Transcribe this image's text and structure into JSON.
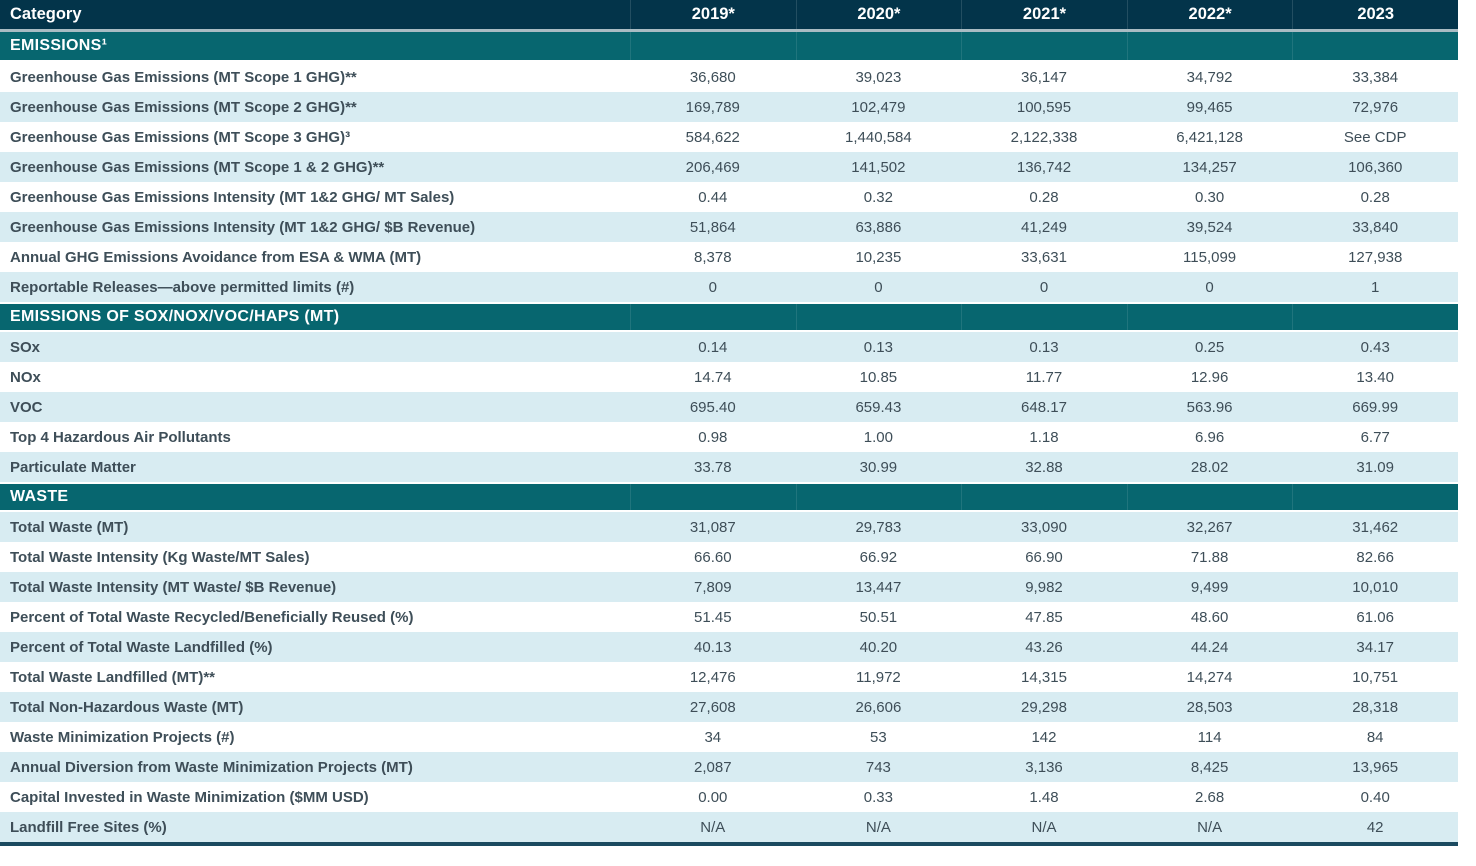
{
  "colors": {
    "header_bg": "#03344a",
    "section_bg": "#07666f",
    "shaded_row_bg": "#d8ecf2",
    "body_text": "#3e4e58",
    "header_text": "#ffffff",
    "header_separator": "#a9bcc3",
    "bottom_rule": "#1b4a60"
  },
  "chart_data": {
    "type": "table",
    "category_header": "Category",
    "columns": [
      "2019*",
      "2020*",
      "2021*",
      "2022*",
      "2023"
    ],
    "sections": [
      {
        "title": "EMISSIONS¹",
        "rows": [
          {
            "label": "Greenhouse Gas Emissions (MT Scope 1 GHG)**",
            "values": [
              "36,680",
              "39,023",
              "36,147",
              "34,792",
              "33,384"
            ]
          },
          {
            "label": "Greenhouse Gas Emissions (MT Scope 2 GHG)**",
            "values": [
              "169,789",
              "102,479",
              "100,595",
              "99,465",
              "72,976"
            ]
          },
          {
            "label": "Greenhouse Gas Emissions (MT Scope 3 GHG)³",
            "values": [
              "584,622",
              "1,440,584",
              "2,122,338",
              "6,421,128",
              "See CDP"
            ]
          },
          {
            "label": "Greenhouse Gas Emissions (MT Scope 1 & 2 GHG)**",
            "values": [
              "206,469",
              "141,502",
              "136,742",
              "134,257",
              "106,360"
            ]
          },
          {
            "label": "Greenhouse Gas Emissions Intensity (MT 1&2 GHG/ MT Sales)",
            "values": [
              "0.44",
              "0.32",
              "0.28",
              "0.30",
              "0.28"
            ]
          },
          {
            "label": "Greenhouse Gas Emissions Intensity (MT 1&2 GHG/ $B Revenue)",
            "values": [
              "51,864",
              "63,886",
              "41,249",
              "39,524",
              "33,840"
            ]
          },
          {
            "label": "Annual GHG Emissions Avoidance from ESA & WMA (MT)",
            "values": [
              "8,378",
              "10,235",
              "33,631",
              "115,099",
              "127,938"
            ]
          },
          {
            "label": "Reportable Releases—above permitted limits (#)",
            "values": [
              "0",
              "0",
              "0",
              "0",
              "1"
            ]
          }
        ]
      },
      {
        "title": "EMISSIONS OF SOX/NOX/VOC/HAPS (MT)",
        "rows": [
          {
            "label": "SOx",
            "values": [
              "0.14",
              "0.13",
              "0.13",
              "0.25",
              "0.43"
            ]
          },
          {
            "label": "NOx",
            "values": [
              "14.74",
              "10.85",
              "11.77",
              "12.96",
              "13.40"
            ]
          },
          {
            "label": "VOC",
            "values": [
              "695.40",
              "659.43",
              "648.17",
              "563.96",
              "669.99"
            ]
          },
          {
            "label": "Top 4 Hazardous Air Pollutants",
            "values": [
              "0.98",
              "1.00",
              "1.18",
              "6.96",
              "6.77"
            ]
          },
          {
            "label": "Particulate Matter",
            "values": [
              "33.78",
              "30.99",
              "32.88",
              "28.02",
              "31.09"
            ]
          }
        ]
      },
      {
        "title": "WASTE",
        "rows": [
          {
            "label": "Total Waste (MT)",
            "values": [
              "31,087",
              "29,783",
              "33,090",
              "32,267",
              "31,462"
            ]
          },
          {
            "label": "Total Waste Intensity (Kg Waste/MT Sales)",
            "values": [
              "66.60",
              "66.92",
              "66.90",
              "71.88",
              "82.66"
            ]
          },
          {
            "label": "Total Waste Intensity (MT Waste/ $B Revenue)",
            "values": [
              "7,809",
              "13,447",
              "9,982",
              "9,499",
              "10,010"
            ]
          },
          {
            "label": "Percent of Total Waste Recycled/Beneficially Reused (%)",
            "values": [
              "51.45",
              "50.51",
              "47.85",
              "48.60",
              "61.06"
            ]
          },
          {
            "label": "Percent of Total Waste Landfilled (%)",
            "values": [
              "40.13",
              "40.20",
              "43.26",
              "44.24",
              "34.17"
            ]
          },
          {
            "label": "Total Waste Landfilled (MT)**",
            "values": [
              "12,476",
              "11,972",
              "14,315",
              "14,274",
              "10,751"
            ]
          },
          {
            "label": "Total Non-Hazardous Waste (MT)",
            "values": [
              "27,608",
              "26,606",
              "29,298",
              "28,503",
              "28,318"
            ]
          },
          {
            "label": "Waste Minimization Projects (#)",
            "values": [
              "34",
              "53",
              "142",
              "114",
              "84"
            ]
          },
          {
            "label": "Annual Diversion from Waste Minimization Projects (MT)",
            "values": [
              "2,087",
              "743",
              "3,136",
              "8,425",
              "13,965"
            ]
          },
          {
            "label": "Capital Invested in Waste Minimization ($MM USD)",
            "values": [
              "0.00",
              "0.33",
              "1.48",
              "2.68",
              "0.40"
            ]
          },
          {
            "label": "Landfill Free Sites (%)",
            "values": [
              "N/A",
              "N/A",
              "N/A",
              "N/A",
              "42"
            ]
          }
        ]
      }
    ]
  }
}
